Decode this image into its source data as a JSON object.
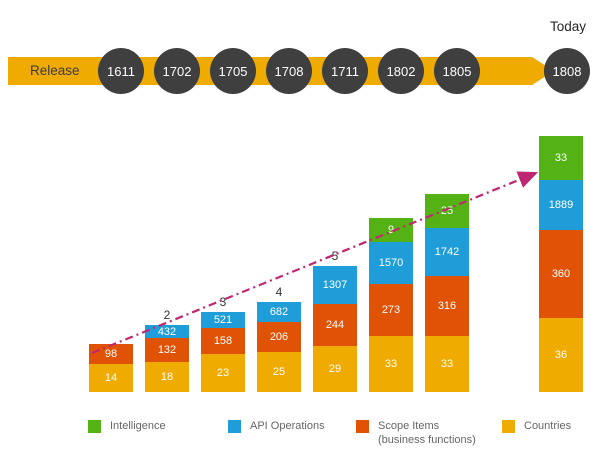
{
  "colors": {
    "gold": "#F0AB00",
    "orange": "#E05206",
    "blue": "#1E9DD8",
    "green": "#55B214",
    "circle_fill": "#3F3F3F",
    "trend_line": "#C12672"
  },
  "timeline": {
    "label": "Release",
    "today_label": "Today",
    "releases": [
      "1611",
      "1702",
      "1705",
      "1708",
      "1711",
      "1802",
      "1805",
      "1808"
    ]
  },
  "chart_data": {
    "type": "bar",
    "stacked": true,
    "categories": [
      "1611",
      "1702",
      "1705",
      "1708",
      "1711",
      "1802",
      "1805",
      "1808"
    ],
    "series": [
      {
        "name": "Intelligence",
        "color": "#55B214",
        "values": [
          null,
          2,
          3,
          4,
          5,
          9,
          25,
          33
        ]
      },
      {
        "name": "API Operations",
        "color": "#1E9DD8",
        "values": [
          null,
          432,
          521,
          682,
          1307,
          1570,
          1742,
          1889
        ]
      },
      {
        "name": "Scope Items (business functions)",
        "color": "#E05206",
        "values": [
          98,
          132,
          158,
          206,
          244,
          273,
          316,
          360
        ]
      },
      {
        "name": "Countries",
        "color": "#F0AB00",
        "values": [
          14,
          18,
          23,
          25,
          29,
          33,
          33,
          36
        ]
      }
    ],
    "stack_order_top_to_bottom": [
      "Intelligence",
      "API Operations",
      "Scope Items (business functions)",
      "Countries"
    ],
    "small_values_shown_above_bars": [
      2,
      3,
      4,
      5
    ],
    "trend_annotation": "rising dash-dot arrow from first bar to last bar"
  },
  "legend": {
    "items": [
      {
        "label": "Intelligence",
        "color": "#55B214"
      },
      {
        "label": "API Operations",
        "color": "#1E9DD8"
      },
      {
        "label": "Scope Items",
        "label2": "(business functions)",
        "color": "#E05206"
      },
      {
        "label": "Countries",
        "color": "#F0AB00"
      }
    ]
  }
}
